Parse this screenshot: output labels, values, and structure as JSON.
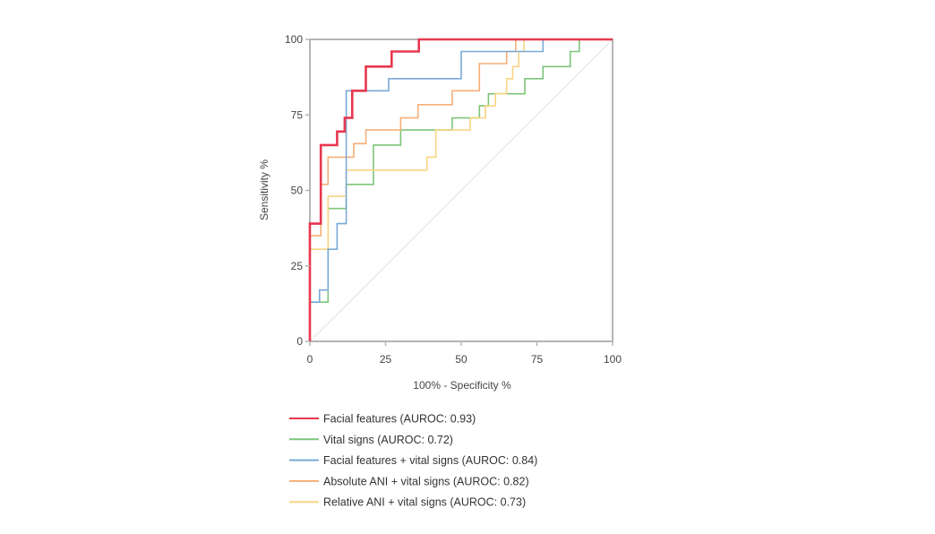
{
  "chart_data": {
    "type": "line",
    "title": "",
    "xlabel": "100% - Specificity %",
    "ylabel": "Sensitivity %",
    "xlim": [
      0,
      100
    ],
    "ylim": [
      0,
      100
    ],
    "xticks": [
      "0",
      "25",
      "50",
      "75",
      "100"
    ],
    "yticks": [
      "0",
      "25",
      "50",
      "75",
      "100"
    ],
    "grid": false,
    "legend_position": "bottom",
    "reference_line_color": "#e6e6e6",
    "series": [
      {
        "name": "Facial features (AUROC: 0.93)",
        "color": "#e8384f",
        "width": 2.6,
        "points": [
          [
            0,
            0
          ],
          [
            0,
            39
          ],
          [
            3.6,
            39
          ],
          [
            3.6,
            65
          ],
          [
            9,
            65
          ],
          [
            9,
            69.5
          ],
          [
            11.5,
            69.5
          ],
          [
            11.5,
            74
          ],
          [
            14,
            74
          ],
          [
            14,
            83
          ],
          [
            18.5,
            83
          ],
          [
            18.5,
            91
          ],
          [
            27,
            91
          ],
          [
            27,
            96
          ],
          [
            36,
            96
          ],
          [
            36,
            100
          ],
          [
            100,
            100
          ]
        ]
      },
      {
        "name": "Vital signs (AUROC: 0.72)",
        "color": "#7cc47a",
        "width": 1.6,
        "points": [
          [
            0,
            0
          ],
          [
            0,
            13
          ],
          [
            6,
            13
          ],
          [
            6,
            44
          ],
          [
            12,
            44
          ],
          [
            12,
            52
          ],
          [
            21,
            52
          ],
          [
            21,
            65
          ],
          [
            30,
            65
          ],
          [
            30,
            70
          ],
          [
            47,
            70
          ],
          [
            47,
            74
          ],
          [
            56,
            74
          ],
          [
            56,
            78
          ],
          [
            59,
            78
          ],
          [
            59,
            82
          ],
          [
            71,
            82
          ],
          [
            71,
            87
          ],
          [
            77,
            87
          ],
          [
            77,
            91
          ],
          [
            86,
            91
          ],
          [
            86,
            96
          ],
          [
            89,
            96
          ],
          [
            89,
            100
          ],
          [
            100,
            100
          ]
        ]
      },
      {
        "name": "Facial features + vital signs (AUROC: 0.84)",
        "color": "#7aa9d8",
        "width": 1.6,
        "points": [
          [
            0,
            0
          ],
          [
            0,
            13
          ],
          [
            3.2,
            13
          ],
          [
            3.2,
            17
          ],
          [
            6,
            17
          ],
          [
            6,
            30.5
          ],
          [
            9,
            30.5
          ],
          [
            9,
            39
          ],
          [
            12,
            39
          ],
          [
            12,
            83
          ],
          [
            26,
            83
          ],
          [
            26,
            87
          ],
          [
            50,
            87
          ],
          [
            50,
            96
          ],
          [
            77,
            96
          ],
          [
            77,
            100
          ],
          [
            100,
            100
          ]
        ]
      },
      {
        "name": "Absolute ANI + vital signs (AUROC: 0.82)",
        "color": "#f5ae78",
        "width": 1.6,
        "points": [
          [
            0,
            0
          ],
          [
            0,
            35
          ],
          [
            3.6,
            35
          ],
          [
            3.6,
            52
          ],
          [
            6,
            52
          ],
          [
            6,
            61
          ],
          [
            14.5,
            61
          ],
          [
            14.5,
            65.5
          ],
          [
            18.5,
            65.5
          ],
          [
            18.5,
            70
          ],
          [
            30,
            70
          ],
          [
            30,
            74
          ],
          [
            35.7,
            74
          ],
          [
            35.7,
            78.4
          ],
          [
            47,
            78.4
          ],
          [
            47,
            83
          ],
          [
            56,
            83
          ],
          [
            56,
            92
          ],
          [
            65,
            92
          ],
          [
            65,
            96
          ],
          [
            68,
            96
          ],
          [
            68,
            100
          ],
          [
            100,
            100
          ]
        ]
      },
      {
        "name": "Relative ANI + vital signs (AUROC: 0.73)",
        "color": "#f8d582",
        "width": 1.6,
        "points": [
          [
            0,
            0
          ],
          [
            0,
            30.5
          ],
          [
            6,
            30.5
          ],
          [
            6,
            48
          ],
          [
            12,
            48
          ],
          [
            12,
            56.7
          ],
          [
            38.7,
            56.7
          ],
          [
            38.7,
            61
          ],
          [
            41.6,
            61
          ],
          [
            41.6,
            70
          ],
          [
            53,
            70
          ],
          [
            53,
            74
          ],
          [
            58,
            74
          ],
          [
            58,
            78
          ],
          [
            61.3,
            78
          ],
          [
            61.3,
            82
          ],
          [
            65,
            82
          ],
          [
            65,
            87
          ],
          [
            67,
            87
          ],
          [
            67,
            91
          ],
          [
            69,
            91
          ],
          [
            69,
            96
          ],
          [
            70.7,
            96
          ],
          [
            70.7,
            100
          ],
          [
            100,
            100
          ]
        ]
      }
    ]
  }
}
